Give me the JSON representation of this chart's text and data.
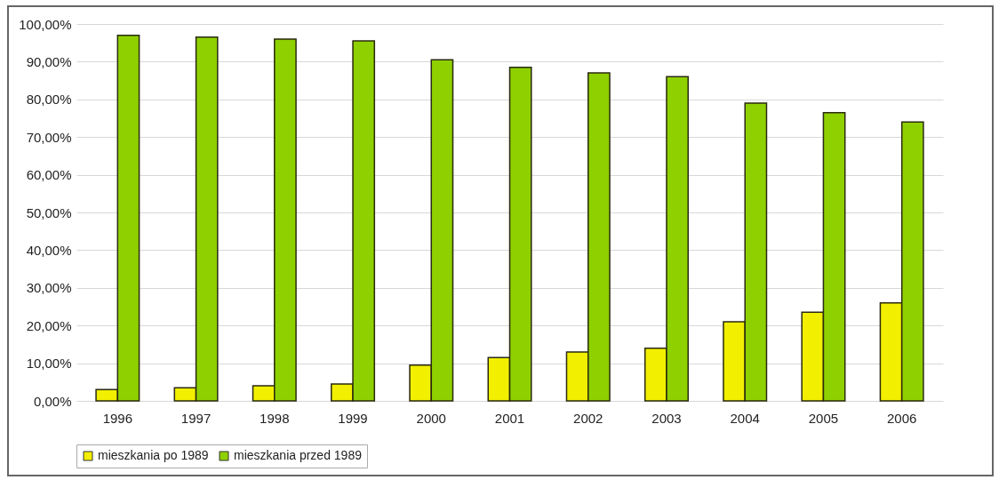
{
  "chart_data": {
    "type": "bar",
    "categories": [
      "1996",
      "1997",
      "1998",
      "1999",
      "2000",
      "2001",
      "2002",
      "2003",
      "2004",
      "2005",
      "2006"
    ],
    "series": [
      {
        "name": "mieszkania po 1989",
        "color": "#f2ef00",
        "values": [
          3,
          3.5,
          4,
          4.5,
          9.5,
          11.5,
          13,
          14,
          21,
          23.5,
          26
        ]
      },
      {
        "name": "mieszkania przed 1989",
        "color": "#8fd000",
        "values": [
          97,
          96.5,
          96,
          95.5,
          90.5,
          88.5,
          87,
          86,
          79,
          76.5,
          74
        ]
      }
    ],
    "ylim": [
      0,
      100
    ],
    "yticks": [
      {
        "value": 0,
        "label": "0,00%"
      },
      {
        "value": 10,
        "label": "10,00%"
      },
      {
        "value": 20,
        "label": "20,00%"
      },
      {
        "value": 30,
        "label": "30,00%"
      },
      {
        "value": 40,
        "label": "40,00%"
      },
      {
        "value": 50,
        "label": "50,00%"
      },
      {
        "value": 60,
        "label": "60,00%"
      },
      {
        "value": 70,
        "label": "70,00%"
      },
      {
        "value": 80,
        "label": "80,00%"
      },
      {
        "value": 90,
        "label": "90,00%"
      },
      {
        "value": 100,
        "label": "100,00%"
      }
    ],
    "grid": "y",
    "legend": "bottom"
  }
}
